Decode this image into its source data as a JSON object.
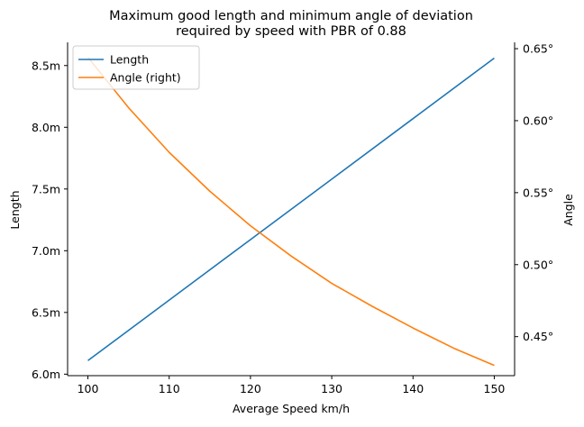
{
  "chart_data": {
    "type": "line",
    "title": "Maximum good length and minimum angle of deviation\nrequired by speed with PBR of 0.88",
    "xlabel": "Average Speed km/h",
    "ylabel": "Length",
    "ylabel_right": "Angle",
    "xlim": [
      97.5,
      152.5
    ],
    "ylim": [
      5.988,
      8.688
    ],
    "ylim_right": [
      0.4229,
      0.6544
    ],
    "x_ticks": [
      100,
      110,
      120,
      130,
      140,
      150
    ],
    "x_tick_labels": [
      "100",
      "110",
      "120",
      "130",
      "140",
      "150"
    ],
    "y_ticks": [
      6.0,
      6.5,
      7.0,
      7.5,
      8.0,
      8.5
    ],
    "y_tick_labels": [
      "6.0m",
      "6.5m",
      "7.0m",
      "7.5m",
      "8.0m",
      "8.5m"
    ],
    "y_right_ticks": [
      0.45,
      0.5,
      0.55,
      0.6,
      0.65
    ],
    "y_right_tick_labels": [
      "0.45°",
      "0.50°",
      "0.55°",
      "0.60°",
      "0.65°"
    ],
    "grid": false,
    "legend_position": "upper-left",
    "series": [
      {
        "name": "Length",
        "axis": "left",
        "color": "#1f77b4",
        "x": [
          100,
          110,
          120,
          130,
          140,
          150
        ],
        "values": [
          6.11,
          6.6,
          7.09,
          7.58,
          8.07,
          8.56
        ]
      },
      {
        "name": "Angle (right)",
        "axis": "right",
        "color": "#ff7f0e",
        "x": [
          100,
          105,
          110,
          115,
          120,
          125,
          130,
          135,
          140,
          145,
          150
        ],
        "values": [
          0.644,
          0.609,
          0.578,
          0.551,
          0.527,
          0.506,
          0.487,
          0.471,
          0.456,
          0.442,
          0.43
        ]
      }
    ]
  }
}
